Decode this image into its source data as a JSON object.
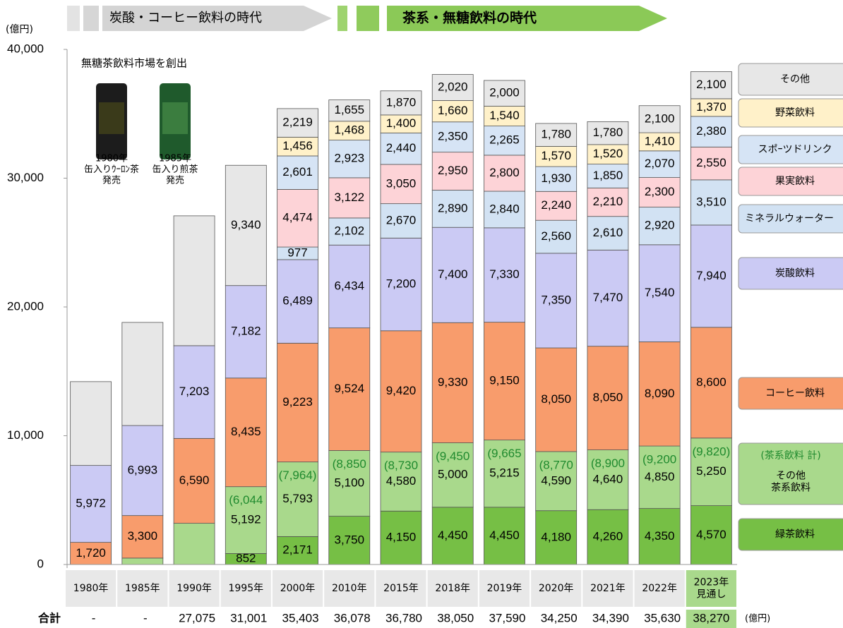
{
  "chart_data": {
    "type": "bar",
    "stacked": true,
    "header_arrows": [
      "炭酸・コーヒー飲料の時代",
      "茶系・無糖飲料の時代"
    ],
    "y_unit": "(億円)",
    "annotation": {
      "title": "無糖茶飲料市場を創出",
      "notes": [
        "1980年\n缶入りｳｰﾛﾝ茶\n発売",
        "1985年\n缶入り煎茶\n発売"
      ]
    },
    "categories": [
      "1980年",
      "1985年",
      "1990年",
      "1995年",
      "2000年",
      "2010年",
      "2015年",
      "2018年",
      "2019年",
      "2020年",
      "2021年",
      "2022年",
      "2023年\n見通し"
    ],
    "ylim": [
      0,
      40000
    ],
    "yticks": [
      0,
      {
        "value": 10000,
        "label": "10,000"
      },
      {
        "value": 20000,
        "label": "20,000"
      },
      {
        "value": 30000,
        "label": "30,000"
      },
      {
        "value": 40000,
        "label": "40,000"
      }
    ],
    "series": [
      {
        "name": "緑茶飲料",
        "color": "#76bf45",
        "values": [
          null,
          null,
          null,
          852,
          2171,
          3750,
          4150,
          4450,
          4450,
          4180,
          4260,
          4350,
          4570
        ],
        "value_labels": [
          null,
          null,
          null,
          "852",
          "2,171",
          "3,750",
          "4,150",
          "4,450",
          "4,450",
          "4,180",
          "4,260",
          "4,350",
          "4,570"
        ]
      },
      {
        "name": "その他\n茶系飲料",
        "color": "#a9d98c",
        "values": [
          null,
          500,
          3200,
          5192,
          5793,
          5100,
          4580,
          5000,
          5215,
          4590,
          4640,
          4850,
          5250
        ],
        "value_labels": [
          null,
          null,
          null,
          "5,192",
          "5,793",
          "5,100",
          "4,580",
          "5,000",
          "5,215",
          "4,590",
          "4,640",
          "4,850",
          "5,250"
        ]
      },
      {
        "name": "コーヒー飲料",
        "color": "#f89c6c",
        "values": [
          1720,
          3300,
          6590,
          8435,
          9223,
          9524,
          9420,
          9330,
          9150,
          8050,
          8050,
          8090,
          8600
        ],
        "value_labels": [
          "1,720",
          "3,300",
          "6,590",
          "8,435",
          "9,223",
          "9,524",
          "9,420",
          "9,330",
          "9,150",
          "8,050",
          "8,050",
          "8,090",
          "8,600"
        ]
      },
      {
        "name": "炭酸飲料",
        "color": "#cbcaf4",
        "values": [
          5972,
          6993,
          7203,
          7182,
          6489,
          6434,
          7200,
          7400,
          7330,
          7350,
          7470,
          7540,
          7940
        ],
        "value_labels": [
          "5,972",
          "6,993",
          "7,203",
          "7,182",
          "6,489",
          "6,434",
          "7,200",
          "7,400",
          "7,330",
          "7,350",
          "7,470",
          "7,540",
          "7,940"
        ]
      },
      {
        "name": "ミネラルウォーター",
        "color": "#d2e2f3",
        "values": [
          null,
          null,
          null,
          null,
          977,
          2102,
          2670,
          2890,
          2840,
          2560,
          2610,
          2920,
          3510
        ],
        "value_labels": [
          null,
          null,
          null,
          null,
          "977",
          "2,102",
          "2,670",
          "2,890",
          "2,840",
          "2,560",
          "2,610",
          "2,920",
          "3,510"
        ]
      },
      {
        "name": "果実飲料",
        "color": "#fdd3d7",
        "values": [
          null,
          null,
          null,
          null,
          4474,
          3122,
          3050,
          2950,
          2800,
          2240,
          2210,
          2300,
          2550
        ],
        "value_labels": [
          null,
          null,
          null,
          null,
          "4,474",
          "3,122",
          "3,050",
          "2,950",
          "2,800",
          "2,240",
          "2,210",
          "2,300",
          "2,550"
        ]
      },
      {
        "name": "スポｰツドリンク",
        "color": "#d6e4f5",
        "values": [
          null,
          null,
          null,
          null,
          2601,
          2923,
          2440,
          2350,
          2265,
          1930,
          1850,
          2070,
          2380
        ],
        "value_labels": [
          null,
          null,
          null,
          null,
          "2,601",
          "2,923",
          "2,440",
          "2,350",
          "2,265",
          "1,930",
          "1,850",
          "2,070",
          "2,380"
        ]
      },
      {
        "name": "野菜飲料",
        "color": "#fff1c9",
        "values": [
          null,
          null,
          null,
          null,
          1456,
          1468,
          1400,
          1660,
          1540,
          1570,
          1520,
          1410,
          1370
        ],
        "value_labels": [
          null,
          null,
          null,
          null,
          "1,456",
          "1,468",
          "1,400",
          "1,660",
          "1,540",
          "1,570",
          "1,520",
          "1,410",
          "1,370"
        ]
      },
      {
        "name": "その他",
        "color": "#e7e7e7",
        "values": [
          6508,
          8007,
          10082,
          9340,
          2219,
          1655,
          1870,
          2020,
          2000,
          1780,
          1780,
          2100,
          2100
        ],
        "value_labels": [
          null,
          null,
          null,
          "9,340",
          "2,219",
          "1,655",
          "1,870",
          "2,020",
          "2,000",
          "1,780",
          "1,780",
          "2,100",
          "2,100"
        ]
      }
    ],
    "tea_total": {
      "name": "(茶系飲料 計)",
      "values": [
        null,
        null,
        null,
        6044,
        7964,
        8850,
        8730,
        9450,
        9665,
        8770,
        8900,
        9200,
        9820
      ],
      "value_labels": [
        null,
        null,
        null,
        "(6,044",
        "(7,964)",
        "(8,850",
        "(8,730",
        "(9,450",
        "(9,665",
        "(8,770",
        "(8,900",
        "(9,200",
        "(9,820)"
      ]
    },
    "totals": {
      "label": "合計",
      "unit": "(億円)",
      "values": [
        null,
        null,
        27075,
        31001,
        35403,
        36078,
        36780,
        38050,
        37590,
        34250,
        34390,
        35630,
        38270
      ],
      "value_labels": [
        "-",
        "-",
        "27,075",
        "31,001",
        "35,403",
        "36,078",
        "36,780",
        "38,050",
        "37,590",
        "34,250",
        "34,390",
        "35,630",
        "38,270"
      ]
    }
  }
}
